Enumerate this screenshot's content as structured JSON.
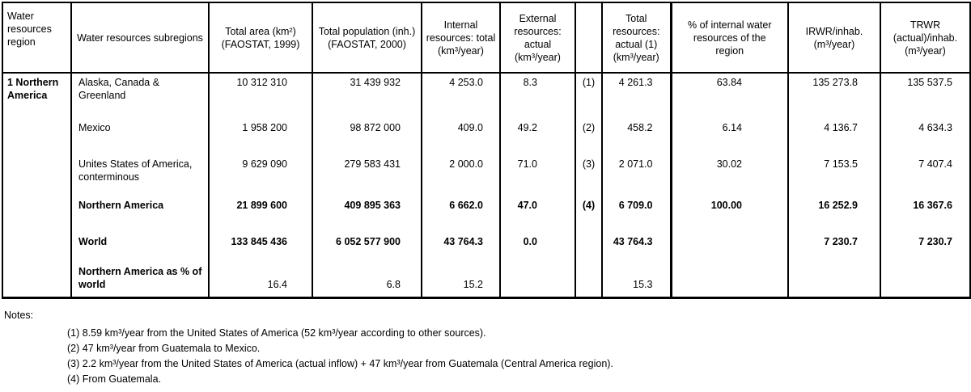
{
  "table": {
    "header": [
      "Water resources region",
      "Water resources subregions",
      "Total area (km²) (FAOSTAT, 1999)",
      "Total population (inh.) (FAOSTAT, 2000)",
      "Internal resources: total (km³/year)",
      "External resources: actual (km³/year)",
      "",
      "Total resources: actual (1) (km³/year)",
      "% of internal water resources of the region",
      "IRWR/inhab. (m³/year)",
      "TRWR (actual)/inhab. (m³/year)"
    ],
    "rows": [
      {
        "cells": [
          "1 Northern America",
          "Alaska, Canada & Greenland",
          "10 312 310",
          "31 439 932",
          "4 253.0",
          "8.3",
          "(1)",
          "4 261.3",
          "63.84",
          "135 273.8",
          "135 537.5"
        ]
      },
      {
        "cells": [
          "",
          "Mexico",
          "1 958 200",
          "98 872 000",
          "409.0",
          "49.2",
          "(2)",
          "458.2",
          "6.14",
          "4 136.7",
          "4 634.3"
        ]
      },
      {
        "cells": [
          "",
          "Unites States of America, conterminous",
          "9 629 090",
          "279 583 431",
          "2 000.0",
          "71.0",
          "(3)",
          "2 071.0",
          "30.02",
          "7 153.5",
          "7 407.4"
        ]
      },
      {
        "cells": [
          "",
          "Northern America",
          "21 899 600",
          "409 895 363",
          "6 662.0",
          "47.0",
          "(4)",
          "6 709.0",
          "100.00",
          "16 252.9",
          "16 367.6"
        ]
      },
      {
        "cells": [
          "",
          "World",
          "133 845 436",
          "6 052 577 900",
          "43 764.3",
          "0.0",
          "",
          "43 764.3",
          "",
          "7 230.7",
          "7 230.7"
        ]
      },
      {
        "cells": [
          "",
          "Northern America as % of world",
          "16.4",
          "6.8",
          "15.2",
          "",
          "",
          "15.3",
          "",
          "",
          ""
        ]
      }
    ]
  },
  "notes": {
    "title": "Notes:",
    "items": [
      "(1) 8.59 km³/year from the United States of America (52 km³/year according to other sources).",
      "(2) 47 km³/year from Guatemala to Mexico.",
      "(3) 2.2 km³/year from the United States of America (actual inflow) + 47 km³/year from Guatemala (Central America region).",
      "(4) From Guatemala."
    ]
  }
}
